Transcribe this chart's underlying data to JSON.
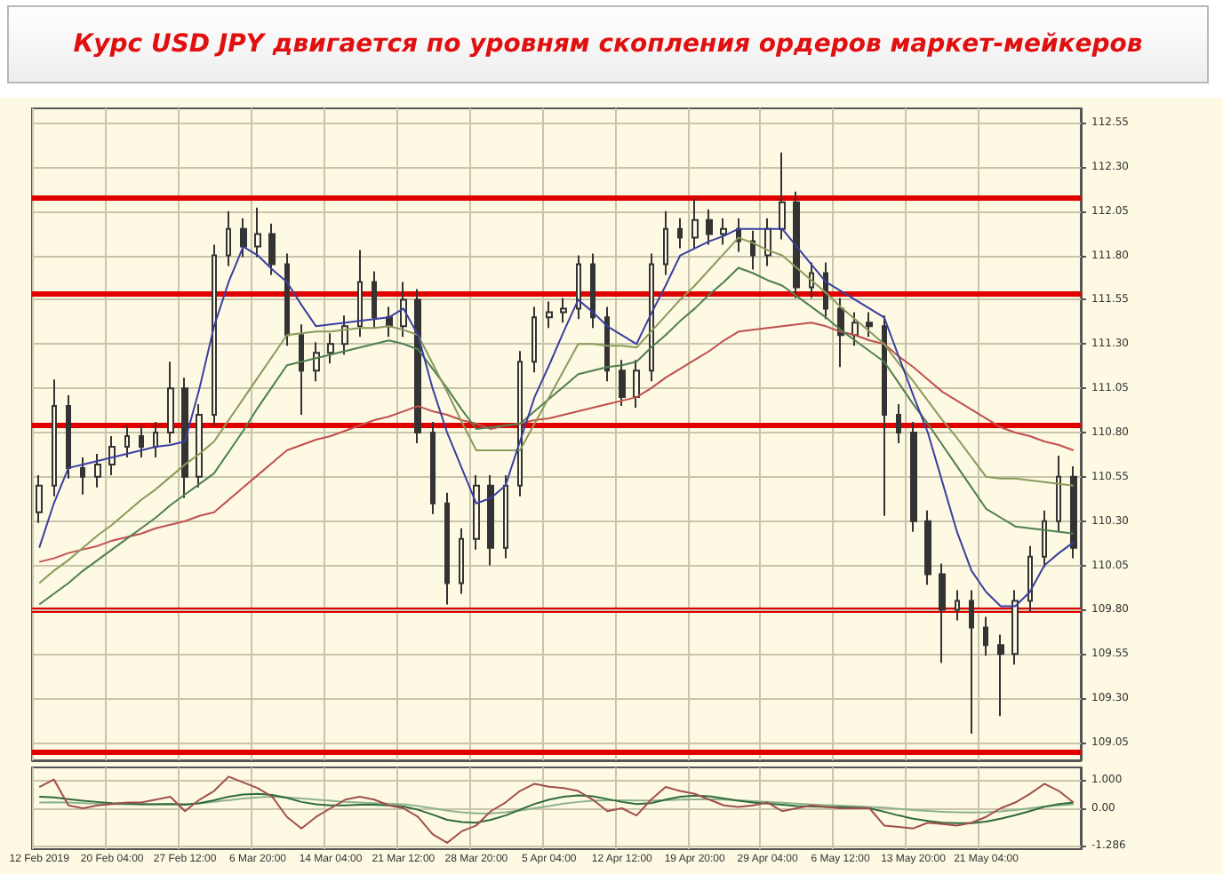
{
  "chart_data": [
    {
      "type": "candlestick",
      "title": "Курс USD JPY двигается по уровням скопления ордеров маркет-мейкеров",
      "color": "#333333",
      "tick_labels": "y",
      "grid": true,
      "ohlc": [
        [
          110.35,
          110.56,
          110.29,
          110.5
        ],
        [
          110.5,
          111.1,
          110.44,
          110.95
        ],
        [
          110.95,
          111.01,
          110.54,
          110.6
        ],
        [
          110.6,
          110.66,
          110.45,
          110.55
        ],
        [
          110.55,
          110.68,
          110.49,
          110.62
        ],
        [
          110.62,
          110.78,
          110.56,
          110.72
        ],
        [
          110.72,
          110.84,
          110.66,
          110.78
        ],
        [
          110.78,
          110.84,
          110.66,
          110.72
        ],
        [
          110.72,
          110.86,
          110.66,
          110.8
        ],
        [
          110.8,
          111.2,
          110.74,
          111.05
        ],
        [
          111.05,
          111.11,
          110.43,
          110.55
        ],
        [
          110.55,
          110.96,
          110.49,
          110.9
        ],
        [
          110.9,
          111.86,
          110.84,
          111.8
        ],
        [
          111.8,
          112.05,
          111.74,
          111.95
        ],
        [
          111.95,
          112.01,
          111.79,
          111.85
        ],
        [
          111.85,
          112.07,
          111.79,
          111.92
        ],
        [
          111.92,
          111.98,
          111.69,
          111.75
        ],
        [
          111.75,
          111.81,
          111.29,
          111.35
        ],
        [
          111.35,
          111.41,
          110.9,
          111.15
        ],
        [
          111.15,
          111.31,
          111.09,
          111.25
        ],
        [
          111.25,
          111.36,
          111.19,
          111.3
        ],
        [
          111.3,
          111.46,
          111.24,
          111.4
        ],
        [
          111.4,
          111.83,
          111.34,
          111.65
        ],
        [
          111.65,
          111.71,
          111.39,
          111.45
        ],
        [
          111.45,
          111.51,
          111.34,
          111.4
        ],
        [
          111.4,
          111.65,
          111.34,
          111.55
        ],
        [
          111.55,
          111.61,
          110.74,
          110.8
        ],
        [
          110.8,
          110.86,
          110.34,
          110.4
        ],
        [
          110.4,
          110.46,
          109.83,
          109.95
        ],
        [
          109.95,
          110.26,
          109.89,
          110.2
        ],
        [
          110.2,
          110.56,
          110.14,
          110.5
        ],
        [
          110.5,
          110.56,
          110.05,
          110.15
        ],
        [
          110.15,
          110.56,
          110.09,
          110.5
        ],
        [
          110.5,
          111.26,
          110.44,
          111.2
        ],
        [
          111.2,
          111.51,
          111.14,
          111.45
        ],
        [
          111.45,
          111.54,
          111.39,
          111.48
        ],
        [
          111.48,
          111.56,
          111.42,
          111.5
        ],
        [
          111.5,
          111.8,
          111.44,
          111.75
        ],
        [
          111.75,
          111.81,
          111.39,
          111.45
        ],
        [
          111.45,
          111.51,
          111.09,
          111.15
        ],
        [
          111.15,
          111.21,
          110.95,
          111.0
        ],
        [
          111.0,
          111.21,
          110.94,
          111.15
        ],
        [
          111.15,
          111.81,
          111.09,
          111.75
        ],
        [
          111.75,
          112.05,
          111.69,
          111.95
        ],
        [
          111.95,
          112.01,
          111.84,
          111.9
        ],
        [
          111.9,
          112.12,
          111.84,
          112.0
        ],
        [
          112.0,
          112.06,
          111.86,
          111.92
        ],
        [
          111.92,
          112.01,
          111.86,
          111.95
        ],
        [
          111.95,
          112.01,
          111.82,
          111.88
        ],
        [
          111.88,
          111.94,
          111.72,
          111.8
        ],
        [
          111.8,
          112.01,
          111.74,
          111.95
        ],
        [
          111.95,
          112.38,
          111.89,
          112.1
        ],
        [
          112.1,
          112.16,
          111.56,
          111.62
        ],
        [
          111.62,
          111.76,
          111.56,
          111.7
        ],
        [
          111.7,
          111.76,
          111.44,
          111.5
        ],
        [
          111.5,
          111.56,
          111.17,
          111.35
        ],
        [
          111.35,
          111.48,
          111.29,
          111.42
        ],
        [
          111.42,
          111.48,
          111.34,
          111.4
        ],
        [
          111.4,
          111.46,
          110.33,
          110.9
        ],
        [
          110.9,
          110.96,
          110.74,
          110.8
        ],
        [
          110.8,
          110.86,
          110.24,
          110.3
        ],
        [
          110.3,
          110.36,
          109.94,
          110.0
        ],
        [
          110.0,
          110.06,
          109.5,
          109.8
        ],
        [
          109.8,
          109.91,
          109.74,
          109.85
        ],
        [
          109.85,
          109.91,
          109.1,
          109.7
        ],
        [
          109.7,
          109.76,
          109.54,
          109.6
        ],
        [
          109.6,
          109.66,
          109.2,
          109.55
        ],
        [
          109.55,
          109.91,
          109.49,
          109.85
        ],
        [
          109.85,
          110.16,
          109.79,
          110.1
        ],
        [
          110.1,
          110.36,
          110.04,
          110.3
        ],
        [
          110.3,
          110.67,
          110.24,
          110.55
        ],
        [
          110.55,
          110.61,
          110.09,
          110.15
        ]
      ],
      "series": [
        {
          "type": "line",
          "color": "#c0504d",
          "values": [
            110.07,
            110.09,
            110.12,
            110.14,
            110.16,
            110.19,
            110.21,
            110.23,
            110.26,
            110.28,
            110.3,
            110.33,
            110.35,
            110.42,
            110.49,
            110.56,
            110.63,
            110.7,
            110.73,
            110.76,
            110.78,
            110.81,
            110.84,
            110.87,
            110.89,
            110.92,
            110.95,
            110.92,
            110.9,
            110.87,
            110.85,
            110.82,
            110.84,
            110.85,
            110.87,
            110.88,
            110.9,
            110.92,
            110.94,
            110.96,
            110.98,
            111.0,
            111.05,
            111.11,
            111.16,
            111.21,
            111.26,
            111.32,
            111.37,
            111.38,
            111.39,
            111.4,
            111.41,
            111.42,
            111.4,
            111.37,
            111.35,
            111.32,
            111.3,
            111.23,
            111.17,
            111.1,
            111.03,
            110.98,
            110.93,
            110.88,
            110.83,
            110.8,
            110.78,
            110.75,
            110.73,
            110.7
          ]
        },
        {
          "type": "line",
          "color": "#4f7f4f",
          "values": [
            109.83,
            109.89,
            109.95,
            110.02,
            110.08,
            110.14,
            110.2,
            110.26,
            110.32,
            110.39,
            110.45,
            110.51,
            110.57,
            110.69,
            110.81,
            110.94,
            111.06,
            111.18,
            111.2,
            111.22,
            111.24,
            111.26,
            111.28,
            111.3,
            111.32,
            111.3,
            111.27,
            111.16,
            111.05,
            110.93,
            110.82,
            110.83,
            110.84,
            110.85,
            110.92,
            110.99,
            111.06,
            111.13,
            111.15,
            111.17,
            111.18,
            111.2,
            111.28,
            111.35,
            111.43,
            111.5,
            111.58,
            111.65,
            111.73,
            111.7,
            111.66,
            111.63,
            111.57,
            111.51,
            111.45,
            111.38,
            111.32,
            111.26,
            111.2,
            111.08,
            110.96,
            110.85,
            110.73,
            110.61,
            110.49,
            110.37,
            110.32,
            110.27,
            110.26,
            110.25,
            110.24,
            110.23
          ]
        },
        {
          "type": "line",
          "color": "#8a9a5b",
          "values": [
            109.95,
            110.02,
            110.08,
            110.15,
            110.22,
            110.28,
            110.35,
            110.42,
            110.48,
            110.55,
            110.62,
            110.68,
            110.75,
            110.87,
            110.99,
            111.11,
            111.23,
            111.35,
            111.36,
            111.37,
            111.37,
            111.38,
            111.39,
            111.39,
            111.4,
            111.38,
            111.35,
            111.19,
            111.03,
            110.86,
            110.7,
            110.7,
            110.7,
            110.7,
            110.85,
            111.0,
            111.15,
            111.3,
            111.3,
            111.29,
            111.29,
            111.28,
            111.37,
            111.46,
            111.55,
            111.63,
            111.72,
            111.81,
            111.9,
            111.87,
            111.83,
            111.8,
            111.73,
            111.66,
            111.59,
            111.51,
            111.44,
            111.37,
            111.3,
            111.19,
            111.09,
            110.98,
            110.87,
            110.77,
            110.66,
            110.55,
            110.54,
            110.54,
            110.53,
            110.52,
            110.51,
            110.5
          ]
        },
        {
          "type": "line",
          "color": "#3a3fa0",
          "values": [
            110.15,
            110.4,
            110.6,
            110.62,
            110.64,
            110.66,
            110.68,
            110.7,
            110.72,
            110.73,
            110.75,
            111.05,
            111.4,
            111.65,
            111.85,
            111.8,
            111.72,
            111.65,
            111.52,
            111.4,
            111.41,
            111.42,
            111.43,
            111.44,
            111.45,
            111.5,
            111.35,
            111.05,
            110.8,
            110.6,
            110.4,
            110.43,
            110.5,
            110.75,
            111.0,
            111.18,
            111.37,
            111.55,
            111.48,
            111.4,
            111.35,
            111.3,
            111.47,
            111.63,
            111.8,
            111.84,
            111.88,
            111.91,
            111.95,
            111.95,
            111.95,
            111.95,
            111.85,
            111.75,
            111.65,
            111.6,
            111.55,
            111.5,
            111.45,
            111.23,
            111.01,
            110.8,
            110.52,
            110.24,
            110.02,
            109.9,
            109.82,
            109.82,
            109.9,
            110.05,
            110.12,
            110.18
          ]
        }
      ],
      "ylim": [
        108.95,
        112.63
      ],
      "yticks": [
        {
          "value": 109.05,
          "label": "109.05"
        },
        {
          "value": 109.3,
          "label": "109.30"
        },
        {
          "value": 109.55,
          "label": "109.55"
        },
        {
          "value": 109.8,
          "label": "109.80"
        },
        {
          "value": 110.05,
          "label": "110.05"
        },
        {
          "value": 110.3,
          "label": "110.30"
        },
        {
          "value": 110.55,
          "label": "110.55"
        },
        {
          "value": 110.8,
          "label": "110.80"
        },
        {
          "value": 111.05,
          "label": "111.05"
        },
        {
          "value": 111.3,
          "label": "111.30"
        },
        {
          "value": 111.55,
          "label": "111.55"
        },
        {
          "value": 111.8,
          "label": "111.80"
        },
        {
          "value": 112.05,
          "label": "112.05"
        },
        {
          "value": 112.3,
          "label": "112.30"
        },
        {
          "value": 112.55,
          "label": "112.55"
        }
      ],
      "ref_lines": [
        {
          "axis": "y",
          "value": 112.13,
          "color": "#e00000"
        },
        {
          "axis": "y",
          "value": 111.58,
          "color": "#e00000"
        },
        {
          "axis": "y",
          "value": 110.84,
          "color": "#e00000"
        },
        {
          "axis": "y",
          "value": 109.8,
          "color": "#e00000"
        },
        {
          "axis": "y",
          "value": 109.0,
          "color": "#e00000"
        }
      ]
    },
    {
      "type": "line",
      "grid": true,
      "categories": [
        "12 Feb 2019",
        null,
        null,
        null,
        null,
        "20 Feb 04:00",
        null,
        null,
        null,
        null,
        "27 Feb 12:00",
        null,
        null,
        null,
        null,
        "6 Mar 20:00",
        null,
        null,
        null,
        null,
        "14 Mar 04:00",
        null,
        null,
        null,
        null,
        "21 Mar 12:00",
        null,
        null,
        null,
        null,
        "28 Mar 20:00",
        null,
        null,
        null,
        null,
        "5 Apr 04:00",
        null,
        null,
        null,
        null,
        "12 Apr 12:00",
        null,
        null,
        null,
        null,
        "19 Apr 20:00",
        null,
        null,
        null,
        null,
        "29 Apr 04:00",
        null,
        null,
        null,
        null,
        "6 May 12:00",
        null,
        null,
        null,
        null,
        "13 May 20:00",
        null,
        null,
        null,
        null,
        "21 May 04:00",
        null,
        null,
        null,
        null,
        null,
        null
      ],
      "series": [
        {
          "color": "#8db38d",
          "values": [
            0.2,
            0.21,
            0.2,
            0.18,
            0.16,
            0.15,
            0.14,
            0.14,
            0.14,
            0.15,
            0.15,
            0.17,
            0.22,
            0.28,
            0.34,
            0.38,
            0.4,
            0.38,
            0.34,
            0.3,
            0.26,
            0.22,
            0.2,
            0.18,
            0.16,
            0.14,
            0.08,
            0.0,
            -0.08,
            -0.14,
            -0.18,
            -0.18,
            -0.14,
            -0.08,
            0.0,
            0.08,
            0.16,
            0.22,
            0.26,
            0.28,
            0.28,
            0.27,
            0.27,
            0.28,
            0.3,
            0.31,
            0.31,
            0.3,
            0.28,
            0.25,
            0.22,
            0.19,
            0.16,
            0.13,
            0.11,
            0.09,
            0.07,
            0.05,
            0.02,
            -0.02,
            -0.06,
            -0.09,
            -0.12,
            -0.14,
            -0.15,
            -0.14,
            -0.11,
            -0.06,
            0.0,
            0.06,
            0.1,
            0.14
          ]
        },
        {
          "color": "#2e6b3a",
          "values": [
            0.4,
            0.38,
            0.32,
            0.26,
            0.22,
            0.18,
            0.16,
            0.14,
            0.14,
            0.15,
            0.12,
            0.18,
            0.28,
            0.4,
            0.48,
            0.5,
            0.46,
            0.36,
            0.22,
            0.14,
            0.1,
            0.1,
            0.12,
            0.12,
            0.1,
            0.06,
            -0.05,
            -0.22,
            -0.4,
            -0.48,
            -0.5,
            -0.4,
            -0.25,
            -0.05,
            0.15,
            0.3,
            0.4,
            0.45,
            0.42,
            0.32,
            0.22,
            0.15,
            0.18,
            0.3,
            0.4,
            0.44,
            0.42,
            0.34,
            0.26,
            0.2,
            0.16,
            0.12,
            0.08,
            0.06,
            0.05,
            0.04,
            0.02,
            0.0,
            -0.12,
            -0.25,
            -0.36,
            -0.44,
            -0.5,
            -0.52,
            -0.52,
            -0.46,
            -0.36,
            -0.24,
            -0.1,
            0.05,
            0.15,
            0.2
          ]
        },
        {
          "color": "#a0504a",
          "values": [
            0.74,
            1.0,
            0.1,
            0.0,
            0.1,
            0.15,
            0.2,
            0.2,
            0.3,
            0.4,
            -0.1,
            0.3,
            0.6,
            1.1,
            0.9,
            0.7,
            0.4,
            -0.3,
            -0.7,
            -0.3,
            0.0,
            0.3,
            0.4,
            0.3,
            0.1,
            0.0,
            -0.3,
            -0.9,
            -1.2,
            -0.8,
            -0.6,
            -0.1,
            0.2,
            0.6,
            0.85,
            0.75,
            0.7,
            0.6,
            0.3,
            -0.1,
            0.0,
            -0.25,
            0.3,
            0.74,
            0.6,
            0.5,
            0.3,
            0.1,
            0.05,
            0.1,
            0.2,
            -0.1,
            0.0,
            0.1,
            0.05,
            0.0,
            0.0,
            0.0,
            -0.6,
            -0.65,
            -0.7,
            -0.5,
            -0.55,
            -0.6,
            -0.5,
            -0.3,
            0.0,
            0.2,
            0.5,
            0.85,
            0.6,
            0.2
          ]
        }
      ],
      "ylim": [
        -1.42,
        1.42
      ],
      "yticks": [
        {
          "value": -1.286,
          "label": "-1.286"
        },
        {
          "value": 0,
          "label": "0.00"
        },
        {
          "value": 1,
          "label": "1.000"
        }
      ]
    }
  ]
}
